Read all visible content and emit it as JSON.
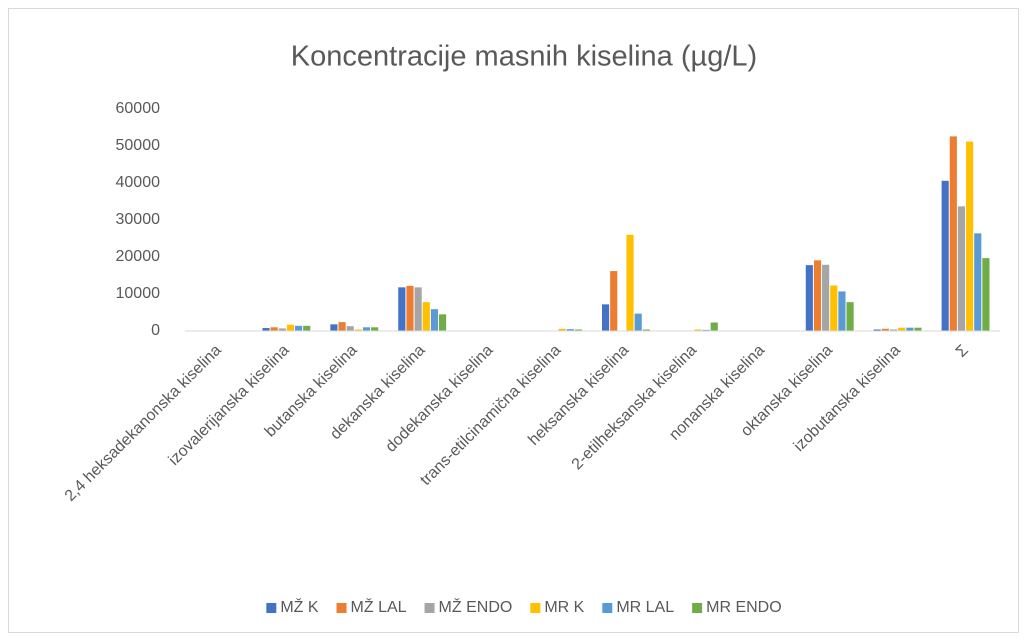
{
  "chart_data": {
    "type": "bar",
    "title": "Koncentracije masnih kiselina (µg/L)",
    "categories": [
      "2,4 heksadekanonska kiselina",
      "izovalerijanska kiselina",
      "butanska kiselina",
      "dekanska kiselina",
      "dodekanska kiselina",
      "trans-etilcinamična kiselina",
      "heksanska kiselina",
      "2-etilheksanska kiselina",
      "nonanska kiselina",
      "oktanska kiselina",
      "izobutanska kiselina",
      "Σ"
    ],
    "series": [
      {
        "name": "MŽ K",
        "color": "#4472c4",
        "values": [
          100,
          800,
          1800,
          11800,
          100,
          50,
          7200,
          50,
          50,
          17800,
          400,
          40600
        ]
      },
      {
        "name": "MŽ LAL",
        "color": "#ed7d31",
        "values": [
          100,
          1000,
          2400,
          12200,
          100,
          50,
          16200,
          50,
          50,
          19100,
          600,
          52600
        ]
      },
      {
        "name": "MŽ ENDO",
        "color": "#a5a5a5",
        "values": [
          100,
          700,
          1300,
          11800,
          100,
          50,
          100,
          100,
          50,
          17900,
          400,
          33700
        ]
      },
      {
        "name": "MR K",
        "color": "#ffc000",
        "values": [
          100,
          1700,
          400,
          7800,
          100,
          600,
          26000,
          400,
          50,
          12300,
          900,
          51200
        ]
      },
      {
        "name": "MR LAL",
        "color": "#5b9bd5",
        "values": [
          100,
          1400,
          1000,
          5900,
          100,
          500,
          4700,
          300,
          50,
          10700,
          900,
          26400
        ]
      },
      {
        "name": "MR ENDO",
        "color": "#70ad47",
        "values": [
          100,
          1400,
          1000,
          4500,
          100,
          400,
          400,
          2300,
          50,
          7800,
          900,
          19700
        ]
      }
    ],
    "ylim": [
      0,
      60000
    ],
    "yticks": [
      0,
      10000,
      20000,
      30000,
      40000,
      50000,
      60000
    ],
    "grid": false,
    "legend": "bottom"
  }
}
